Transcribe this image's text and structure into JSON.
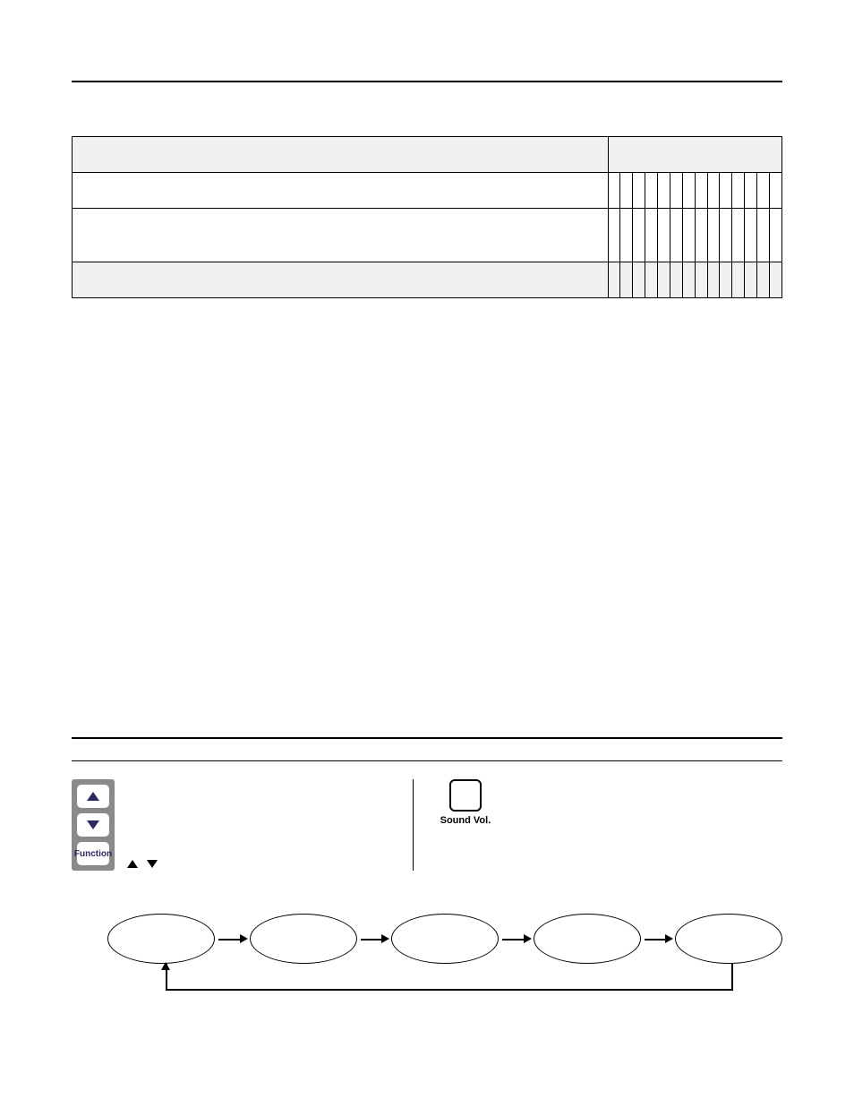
{
  "table": {
    "num_data_cols": 14,
    "rows": [
      {
        "shaded": true,
        "tall": false
      },
      {
        "shaded": false,
        "tall": false
      },
      {
        "shaded": false,
        "tall": true
      },
      {
        "shaded": true,
        "tall": false
      }
    ]
  },
  "buttons": {
    "function_label": "Function",
    "sound_vol_label": "Sound Vol."
  },
  "flow": {
    "node_count": 5
  },
  "colors": {
    "shaded_bg": "#f0f0f0",
    "button_stack_bg": "#8a8a8a",
    "button_fg": "#2a2a60",
    "line": "#000000",
    "page_bg": "#ffffff"
  }
}
